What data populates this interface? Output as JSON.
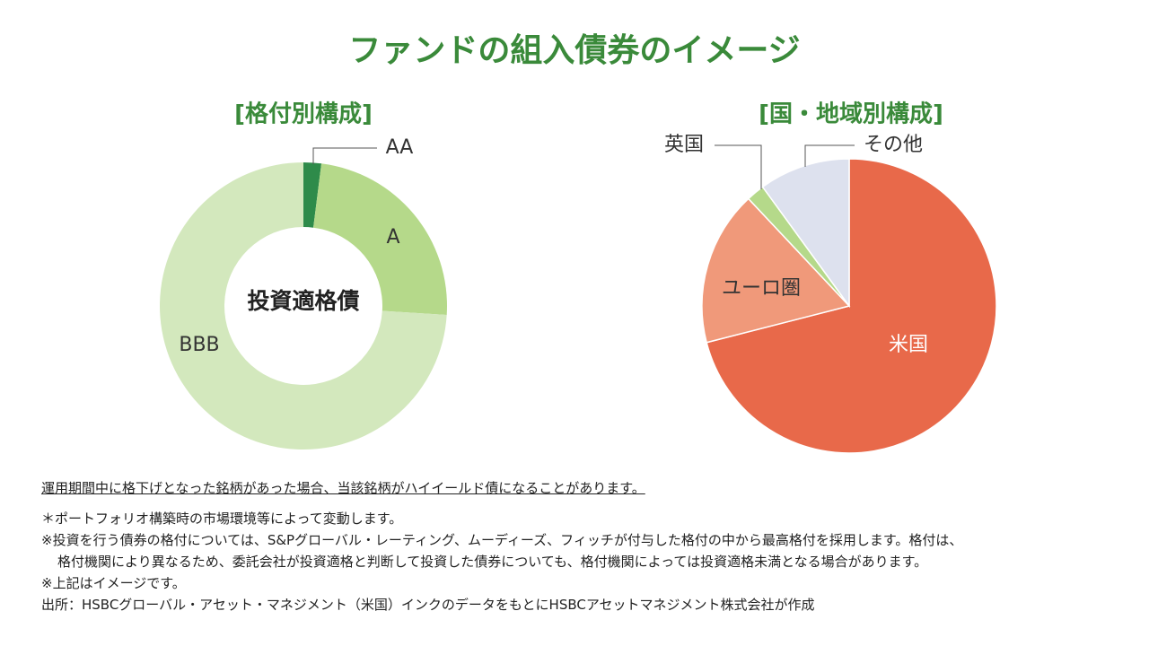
{
  "title": "ファンドの組入債券のイメージ",
  "chart_data": [
    {
      "type": "donut",
      "title": "[格付別構成]",
      "center_label": "投資適格債",
      "categories": [
        "AA",
        "A",
        "BBB"
      ],
      "values": [
        2,
        24,
        74
      ],
      "colors": [
        "#2e8b4a",
        "#b5d98a",
        "#d3e8bd"
      ]
    },
    {
      "type": "pie",
      "title": "[国・地域別構成]",
      "categories": [
        "米国",
        "ユーロ圏",
        "英国",
        "その他"
      ],
      "values": [
        71,
        17,
        2,
        10
      ],
      "colors": [
        "#e8694a",
        "#f0997a",
        "#b5d98a",
        "#dde1ee"
      ]
    }
  ],
  "notes": [
    "運用期間中に格下げとなった銘柄があった場合、当該銘柄がハイイールド債になることがあります。",
    "＊ポートフォリオ構築時の市場環境等によって変動します。",
    "※投資を行う債券の格付については、S&Pグローバル・レーティング、ムーディーズ、フィッチが付与した格付の中から最高格付を採用します。格付は、",
    "格付機関により異なるため、委託会社が投資適格と判断して投資した債券についても、格付機関によっては投資適格未満となる場合があります。",
    "※上記はイメージです。",
    "出所：HSBCグローバル・アセット・マネジメント（米国）インクのデータをもとにHSBCアセットマネジメント株式会社が作成"
  ]
}
